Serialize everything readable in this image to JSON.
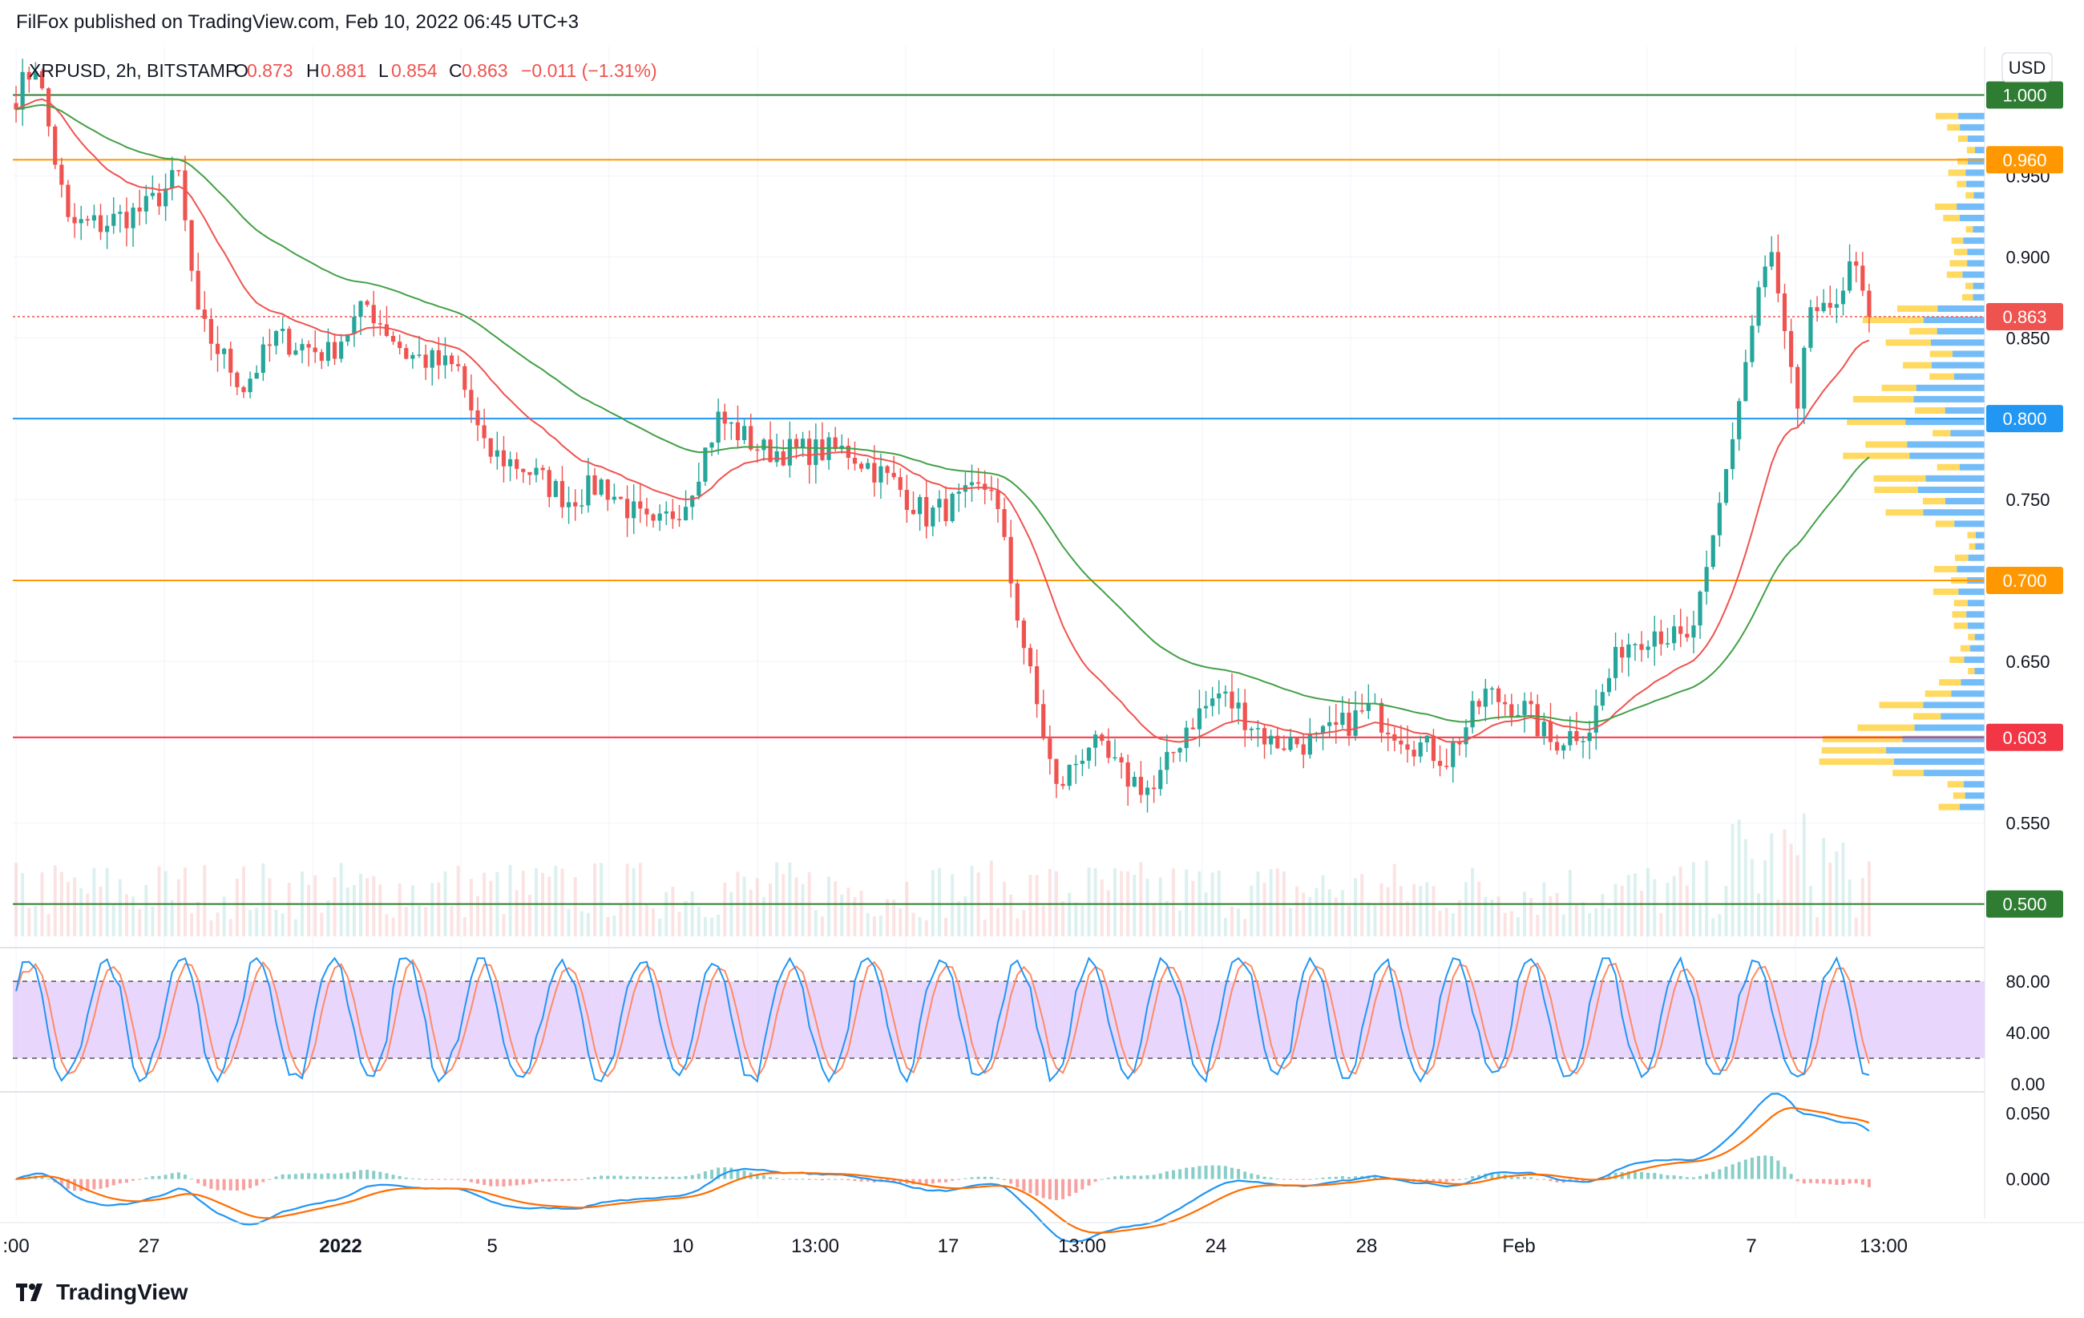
{
  "header": {
    "text": "FilFox published on TradingView.com, Feb 10, 2022 06:45 UTC+3"
  },
  "footer": {
    "brand": "TradingView"
  },
  "colors": {
    "bull": "#26a69a",
    "bear": "#ef5350",
    "ema_fast": "#ef5350",
    "ema_slow": "#43a047",
    "green_line": "#2e7d32",
    "orange_line": "#ff9800",
    "blue_line": "#2196f3",
    "red_line": "#f23645",
    "stoch_k": "#2196f3",
    "stoch_d": "#ff8a65",
    "stoch_band": "#e1c8fb",
    "macd": "#2196f3",
    "signal": "#ff6d00"
  },
  "chart_data": {
    "type": "candlestick",
    "symbol": "XRPUSD, 2h, BITSTAMP",
    "ohlc": {
      "o_label": "O",
      "o": "0.873",
      "h_label": "H",
      "h": "0.881",
      "l_label": "L",
      "l": "0.854",
      "c_label": "C",
      "c": "0.863",
      "change": "−0.011 (−1.31%)"
    },
    "currency": "USD",
    "ylim": [
      0.48,
      1.03
    ],
    "y_ticks": [
      "0.950",
      "0.900",
      "0.850",
      "0.750",
      "0.650",
      "0.550"
    ],
    "x_ticks": [
      ":00",
      "27",
      "2022",
      "5",
      "10",
      "13:00",
      "17",
      "13:00",
      "24",
      "28",
      "Feb",
      "7",
      "13:00"
    ],
    "close_anchors": [
      [
        0,
        1.0
      ],
      [
        3,
        1.02
      ],
      [
        8,
        0.92
      ],
      [
        13,
        0.92
      ],
      [
        20,
        0.93
      ],
      [
        25,
        0.95
      ],
      [
        28,
        0.86
      ],
      [
        35,
        0.82
      ],
      [
        40,
        0.85
      ],
      [
        48,
        0.84
      ],
      [
        54,
        0.87
      ],
      [
        60,
        0.84
      ],
      [
        68,
        0.83
      ],
      [
        72,
        0.78
      ],
      [
        78,
        0.77
      ],
      [
        85,
        0.75
      ],
      [
        90,
        0.76
      ],
      [
        98,
        0.73
      ],
      [
        103,
        0.75
      ],
      [
        108,
        0.8
      ],
      [
        115,
        0.78
      ],
      [
        122,
        0.78
      ],
      [
        128,
        0.78
      ],
      [
        135,
        0.76
      ],
      [
        140,
        0.74
      ],
      [
        146,
        0.75
      ],
      [
        150,
        0.76
      ],
      [
        156,
        0.64
      ],
      [
        160,
        0.57
      ],
      [
        165,
        0.6
      ],
      [
        170,
        0.58
      ],
      [
        175,
        0.57
      ],
      [
        180,
        0.61
      ],
      [
        185,
        0.63
      ],
      [
        188,
        0.62
      ],
      [
        193,
        0.6
      ],
      [
        200,
        0.6
      ],
      [
        208,
        0.62
      ],
      [
        215,
        0.6
      ],
      [
        220,
        0.59
      ],
      [
        226,
        0.63
      ],
      [
        232,
        0.62
      ],
      [
        236,
        0.6
      ],
      [
        242,
        0.61
      ],
      [
        247,
        0.66
      ],
      [
        252,
        0.67
      ],
      [
        257,
        0.66
      ],
      [
        260,
        0.7
      ],
      [
        264,
        0.79
      ],
      [
        268,
        0.88
      ],
      [
        270,
        0.9
      ],
      [
        272,
        0.85
      ],
      [
        274,
        0.8
      ],
      [
        276,
        0.87
      ],
      [
        279,
        0.86
      ],
      [
        282,
        0.9
      ],
      [
        285,
        0.863
      ]
    ],
    "hlines": [
      {
        "value": 1.0,
        "label": "1.000",
        "color": "#2e7d32"
      },
      {
        "value": 0.96,
        "label": "0.960",
        "color": "#ff9800"
      },
      {
        "value": 0.8,
        "label": "0.800",
        "color": "#2196f3"
      },
      {
        "value": 0.7,
        "label": "0.700",
        "color": "#ff9800"
      },
      {
        "value": 0.603,
        "label": "0.603",
        "color": "#f23645"
      },
      {
        "value": 0.5,
        "label": "0.500",
        "color": "#2e7d32"
      }
    ],
    "last_price": {
      "value": 0.863,
      "label": "0.863",
      "color": "#ef5350"
    },
    "stoch": {
      "ylim": [
        0,
        100
      ],
      "band": [
        20,
        80
      ],
      "ticks": [
        "80.00",
        "40.00",
        "0.00"
      ]
    },
    "macd": {
      "ylim": [
        -0.03,
        0.06
      ],
      "ticks": [
        "0.050",
        "0.000"
      ]
    }
  }
}
